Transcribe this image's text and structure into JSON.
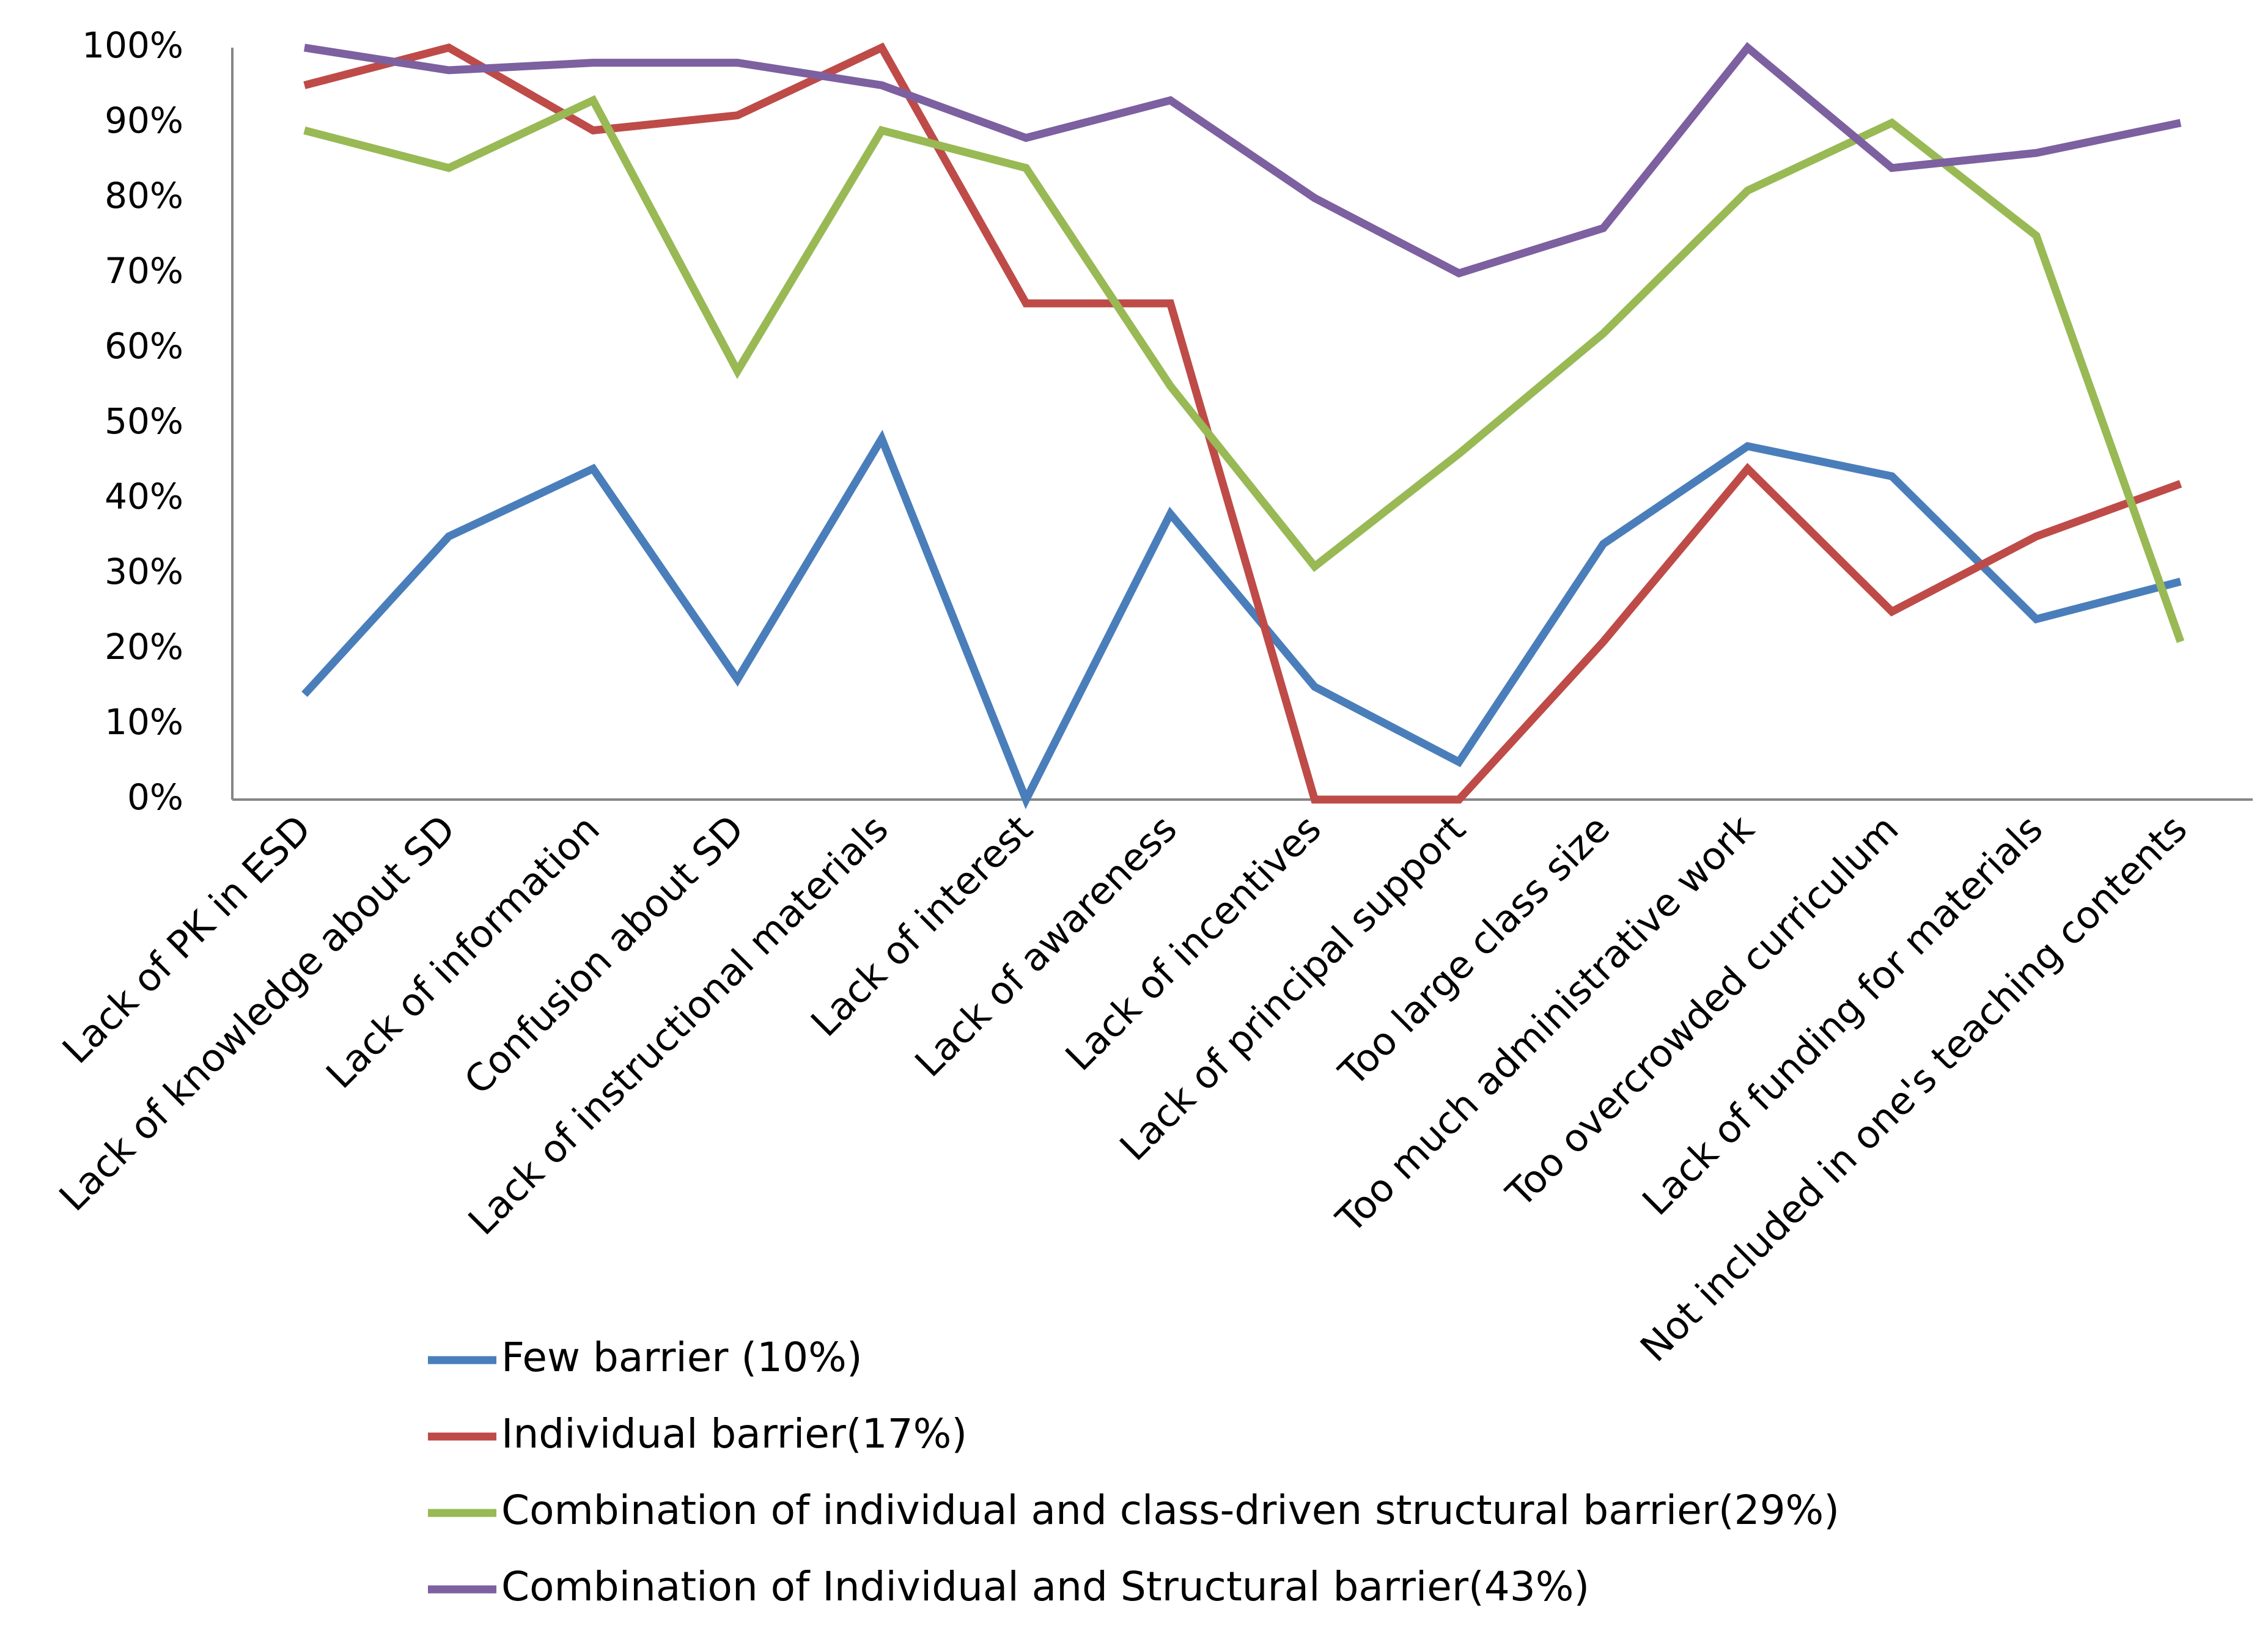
{
  "chart_data": {
    "type": "line",
    "title": "",
    "xlabel": "",
    "ylabel": "",
    "ylim": [
      0,
      100
    ],
    "y_ticks": [
      "0%",
      "10%",
      "20%",
      "30%",
      "40%",
      "50%",
      "60%",
      "70%",
      "80%",
      "90%",
      "100%"
    ],
    "grid": false,
    "legend_position": "bottom-left",
    "categories": [
      "Lack of PK in ESD",
      "Lack of knowledge about SD",
      "Lack of information",
      "Confusion about SD",
      "Lack of instructional materials",
      "Lack of interest",
      "Lack of awareness",
      "Lack of incentives",
      "Lack of principal support",
      "Too large class size",
      "Too much administrative work",
      "Too overcrowded curriculum",
      "Lack of funding for materials",
      "Not included in one's teaching contents"
    ],
    "series": [
      {
        "name": "Few barrier (10%)",
        "color": "#4a7ebb",
        "values": [
          14,
          35,
          44,
          16,
          48,
          0,
          38,
          15,
          5,
          34,
          47,
          43,
          24,
          29
        ]
      },
      {
        "name": "Individual barrier(17%)",
        "color": "#be4b48",
        "values": [
          95,
          100,
          89,
          91,
          100,
          66,
          66,
          0,
          0,
          21,
          44,
          25,
          35,
          42
        ]
      },
      {
        "name": "Combination of individual and class-driven structural barrier(29%)",
        "color": "#98b954",
        "values": [
          89,
          84,
          93,
          57,
          89,
          84,
          55,
          31,
          46,
          62,
          81,
          90,
          75,
          21
        ]
      },
      {
        "name": "Combination of Individual and Structural barrier(43%)",
        "color": "#7d60a0",
        "values": [
          100,
          97,
          98,
          98,
          95,
          88,
          93,
          80,
          70,
          76,
          100,
          84,
          86,
          90
        ]
      }
    ]
  }
}
